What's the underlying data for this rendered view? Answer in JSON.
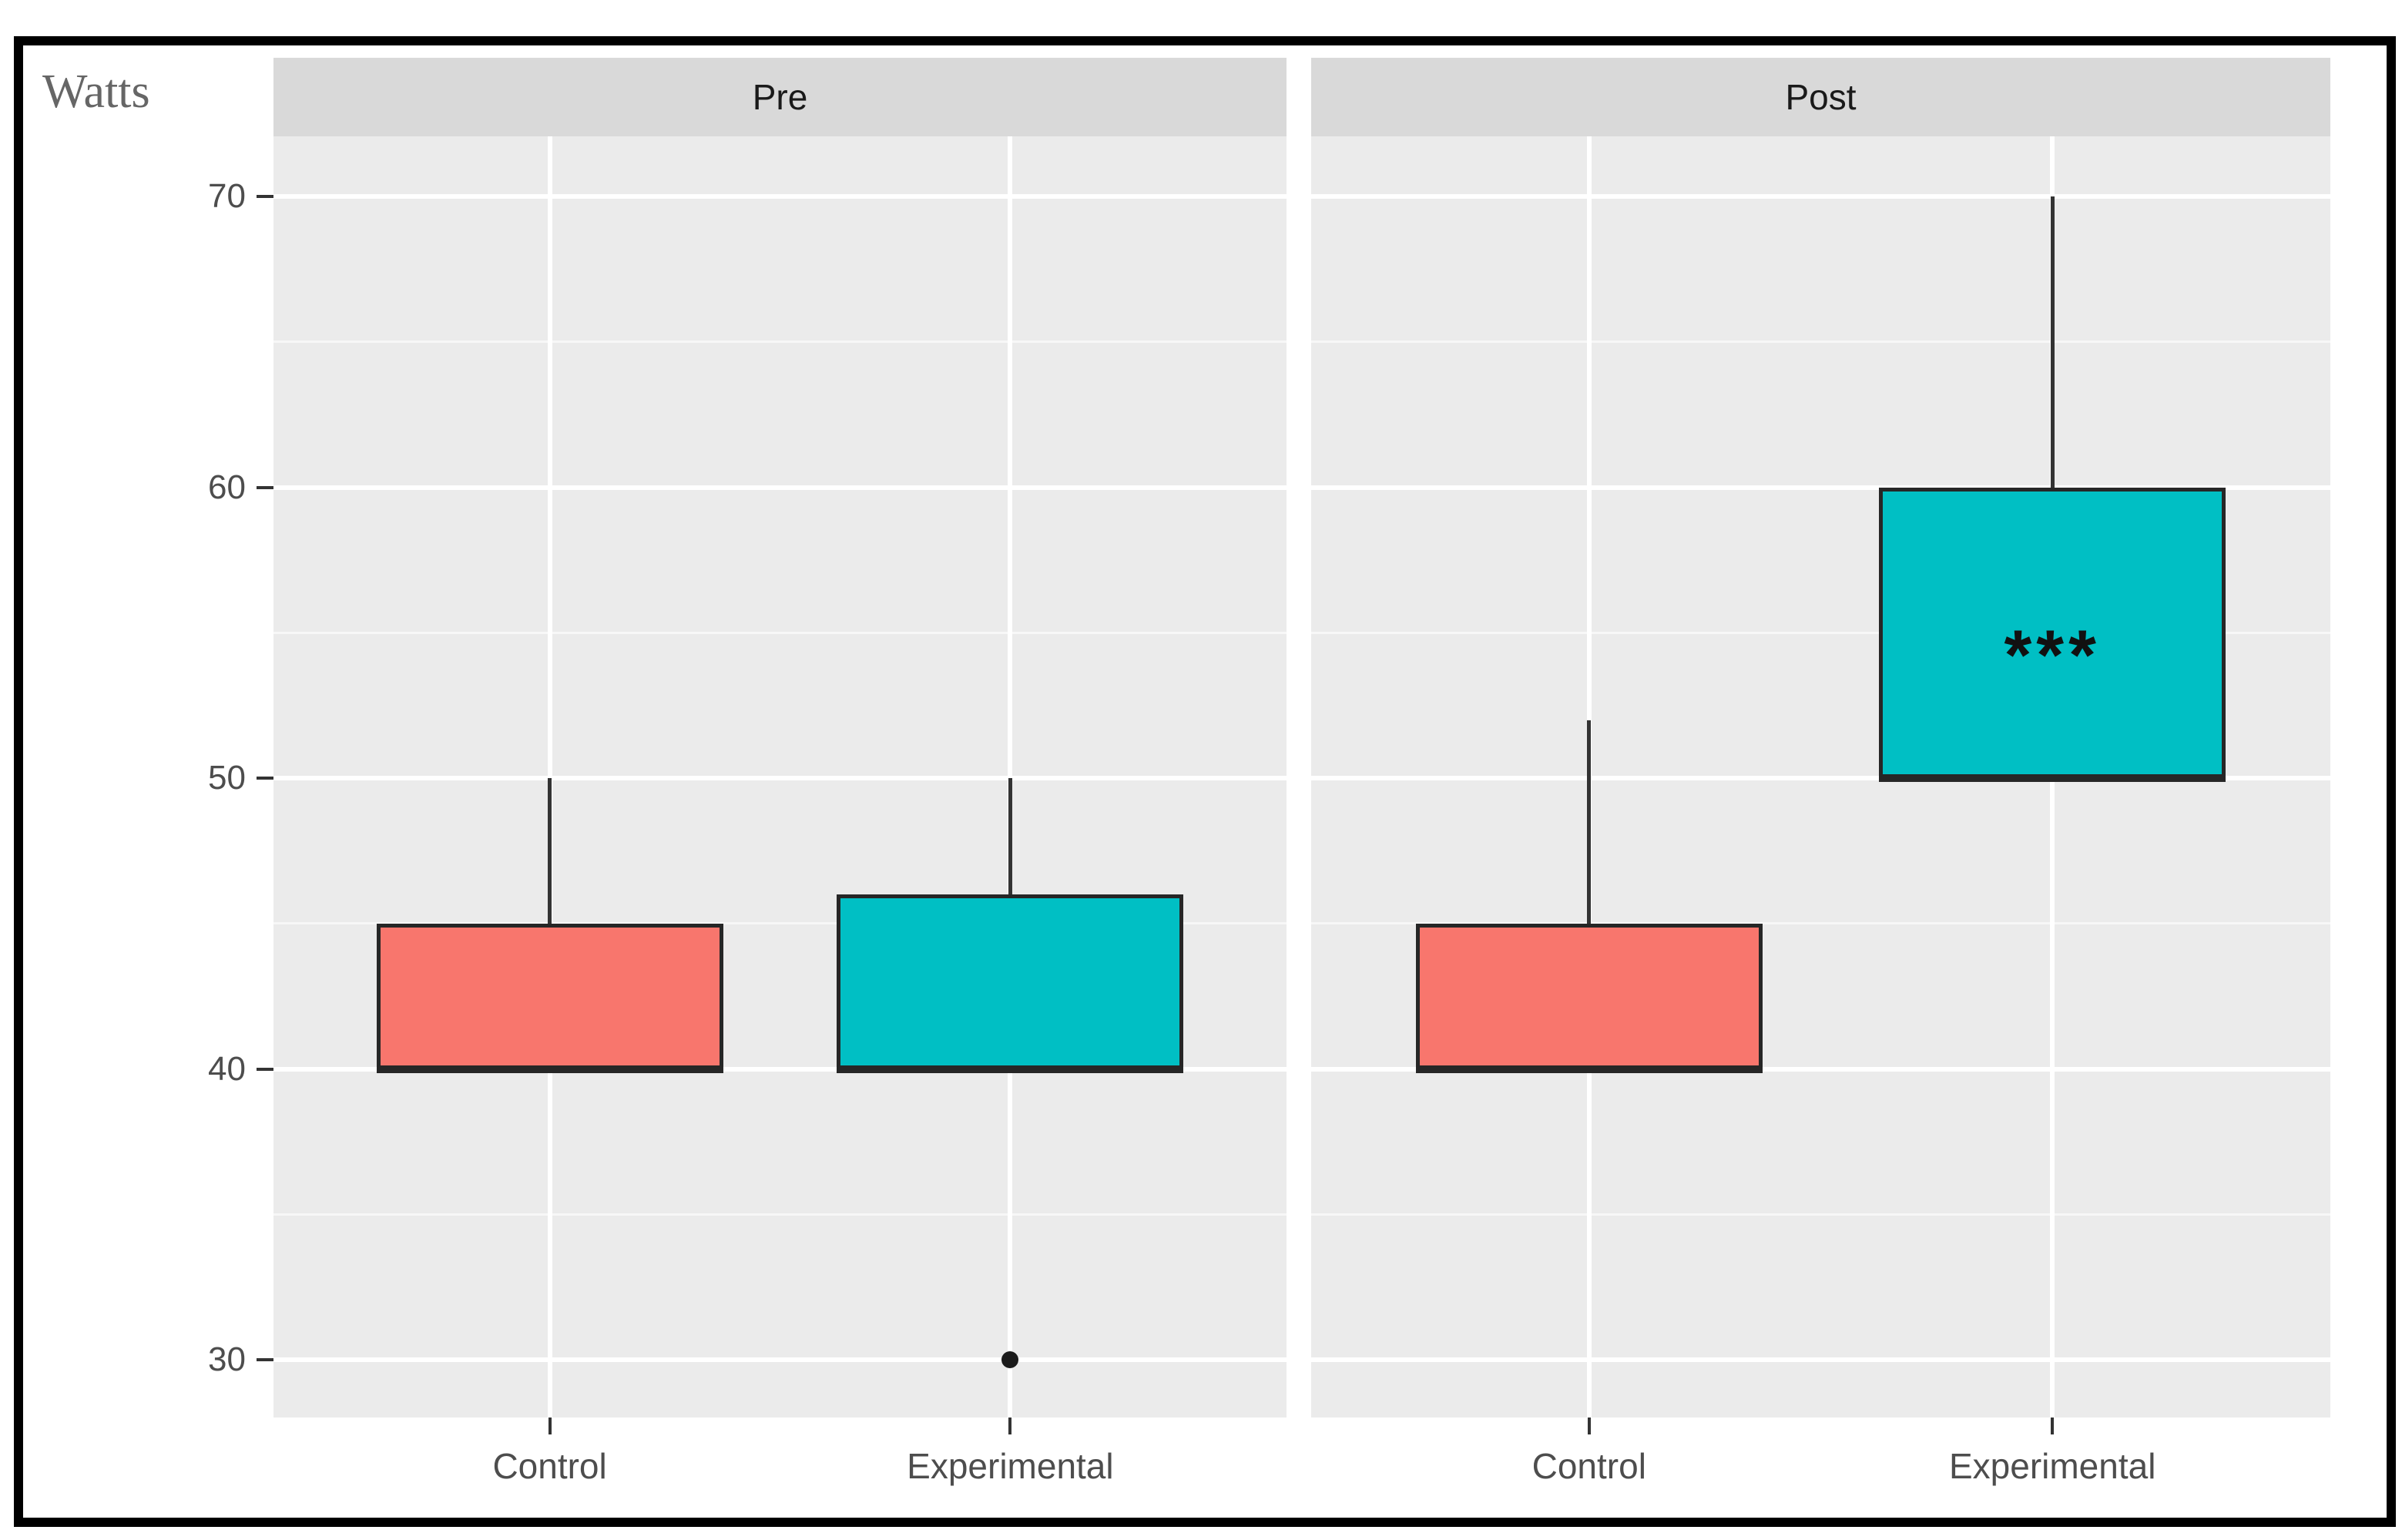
{
  "figure": {
    "y_axis_title": "Watts"
  },
  "colors": {
    "control_fill": "#F8766D",
    "experimental_fill": "#00BFC4",
    "panel_bg": "#EBEBEB",
    "strip_bg": "#D9D9D9",
    "strip_text": "#1A1A1A",
    "gridline_major": "#FFFFFF",
    "gridline_minor": "#F7F7F7",
    "box_border": "#262626",
    "whisker": "#333333",
    "tick_mark": "#333333",
    "tick_text": "#4D4D4D",
    "axis_title_text": "#666666",
    "outlier": "#1A1A1A",
    "annotation_text": "#111111",
    "frame_border": "#000000"
  },
  "chart_data": {
    "type": "boxplot",
    "title": "",
    "ylabel": "Watts",
    "xlabel": "",
    "ylim": [
      28,
      72
    ],
    "y_major_ticks": [
      70,
      60,
      50,
      40,
      30
    ],
    "y_minor_gridlines": [
      65,
      55,
      45,
      35
    ],
    "grid": true,
    "legend": false,
    "x_categories": [
      "Control",
      "Experimental"
    ],
    "facets": [
      {
        "label": "Pre",
        "groups": [
          {
            "category": "Control",
            "fill": "control_fill",
            "q1": 40,
            "median": 40,
            "q3": 45,
            "whisker_low": 40,
            "whisker_high": 50,
            "outliers": []
          },
          {
            "category": "Experimental",
            "fill": "experimental_fill",
            "q1": 40,
            "median": 40,
            "q3": 46,
            "whisker_low": 40,
            "whisker_high": 50,
            "outliers": [
              30
            ]
          }
        ]
      },
      {
        "label": "Post",
        "groups": [
          {
            "category": "Control",
            "fill": "control_fill",
            "q1": 40,
            "median": 40,
            "q3": 45,
            "whisker_low": 40,
            "whisker_high": 52,
            "outliers": []
          },
          {
            "category": "Experimental",
            "fill": "experimental_fill",
            "q1": 50,
            "median": 50,
            "q3": 60,
            "whisker_low": 50,
            "whisker_high": 70,
            "outliers": [],
            "annotation": {
              "text": "***",
              "at_value": 54.8
            }
          }
        ]
      }
    ]
  }
}
